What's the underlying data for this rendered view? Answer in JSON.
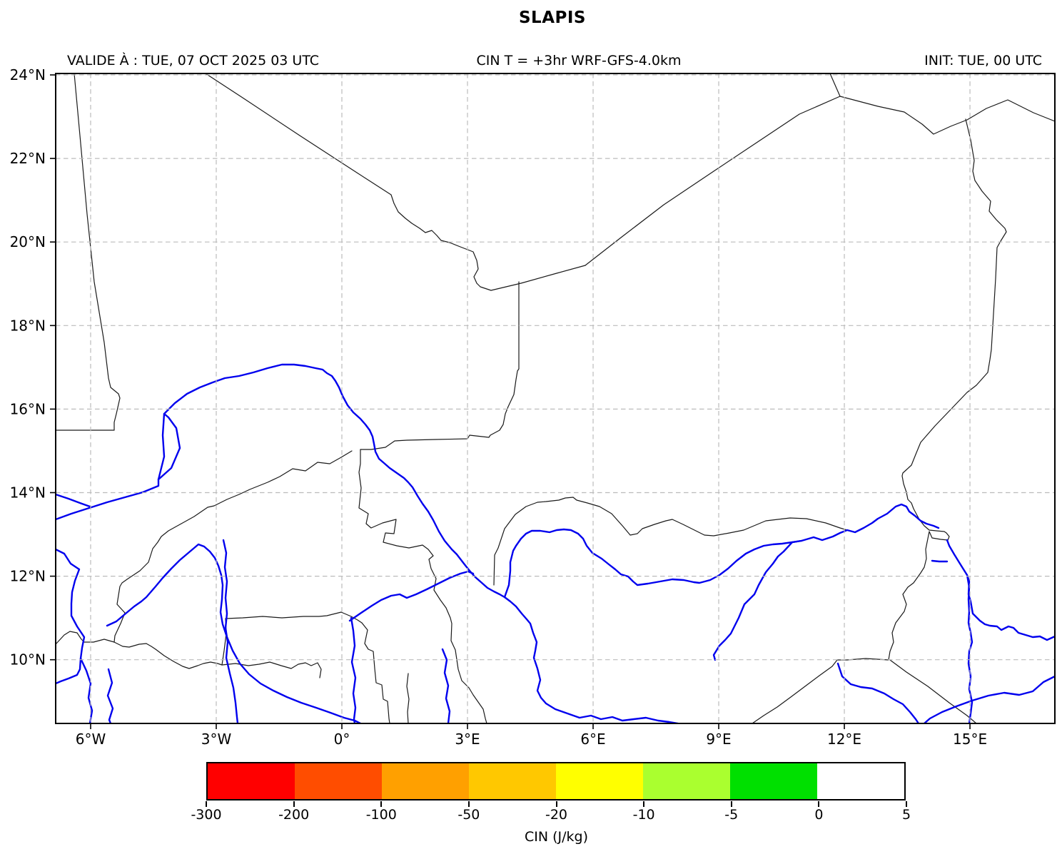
{
  "title": "SLAPIS",
  "header": {
    "left": "VALIDE À : TUE, 07 OCT 2025 03 UTC",
    "center": "CIN T = +3hr WRF-GFS-4.0km",
    "right": "INIT: TUE, 00 UTC"
  },
  "chart_data": {
    "type": "map",
    "title": "SLAPIS",
    "subtitle_left": "VALIDE À : TUE, 07 OCT 2025 03 UTC",
    "subtitle_center": "CIN T = +3hr WRF-GFS-4.0km",
    "subtitle_right": "INIT: TUE, 00 UTC",
    "projection": "equirectangular lon/lat",
    "x_axis": {
      "range_deg": [
        -6.84,
        17.03
      ],
      "ticks": [
        {
          "label": "6°W",
          "lon": -6
        },
        {
          "label": "3°W",
          "lon": -3
        },
        {
          "label": "0°",
          "lon": 0
        },
        {
          "label": "3°E",
          "lon": 3
        },
        {
          "label": "6°E",
          "lon": 6
        },
        {
          "label": "9°E",
          "lon": 9
        },
        {
          "label": "12°E",
          "lon": 12
        },
        {
          "label": "15°E",
          "lon": 15
        }
      ]
    },
    "y_axis": {
      "range_deg": [
        8.47,
        24.03
      ],
      "ticks": [
        {
          "label": "24°N",
          "lat": 24
        },
        {
          "label": "22°N",
          "lat": 22
        },
        {
          "label": "20°N",
          "lat": 20
        },
        {
          "label": "18°N",
          "lat": 18
        },
        {
          "label": "16°N",
          "lat": 16
        },
        {
          "label": "14°N",
          "lat": 14
        },
        {
          "label": "12°N",
          "lat": 12
        },
        {
          "label": "10°N",
          "lat": 10
        }
      ]
    },
    "grid": "dashed",
    "legend_position": "bottom colorbar",
    "colorbar": {
      "label": "CIN (J/kg)",
      "tick_labels": [
        "-300",
        "-200",
        "-100",
        "-50",
        "-20",
        "-10",
        "-5",
        "0",
        "5"
      ],
      "segment_colors": [
        "#ff0000",
        "#ff4d00",
        "#ffa000",
        "#ffc800",
        "#ffff00",
        "#aaff2f",
        "#00e000",
        "#ffffff"
      ]
    },
    "colors": {
      "border": "#1a1a1a",
      "river": "#0000ee",
      "grid": "#bbbbbb",
      "frame": "#000000"
    },
    "layers": {
      "borders": [
        "104,103 112,190 122,300 132,395 146,480 152,530 155,543 166,552 168,558 163,580 160,592 160,603 130,603 78,603",
        "288,103 340,137 420,190 500,242 548,273 552,285 558,297 568,306 577,313 588,320 596,326 605,323 612,330 618,337 630,340 645,346 658,351 663,353 668,365 670,377 664,388 668,397 673,402 688,407 730,397 780,383 820,372",
        "820,372 870,333 930,287 1000,240 1060,200 1120,160 1177,135",
        "1163,103 1177,135",
        "1177,135 1230,149 1267,157 1292,174 1308,188 1332,177 1355,168 1382,152 1412,140 1448,158 1478,170",
        "1353,167 1360,196 1365,225 1363,240 1366,253 1376,268 1388,282 1386,296 1396,308 1408,320 1410,325 1402,338 1397,347 1395,390 1392,440 1389,490 1387,504 1384,522 1368,540 1355,550 1333,573 1310,597 1290,620 1283,637 1277,652 1265,663 1264,667 1266,678 1270,690 1272,700 1277,705 1280,713 1288,728 1295,737 1302,743 1312,744 1323,745 1326,747 1330,752 1328,757 1318,756 1306,754 1302,745 1297,770 1298,783 1295,795 1290,803 1280,817 1272,823 1265,833 1270,847 1267,857 1255,873 1250,887 1252,900 1247,913 1245,925 1213,923 1187,925 1173,925 1166,934 1148,947 1128,962 1108,977 1089,991 1070,1003 1054,1014",
        "1247,925 1270,942 1300,962 1330,985 1355,1003 1368,1014",
        "727,395 727,450 727,517 725,520 723,532 720,553 712,570 708,580 705,595 700,603 687,610 685,613 658,610 655,615 610,616 570,617 553,618 540,627 520,630 505,630",
        "505,630 505,650 503,662 506,684 503,712 516,720 513,734 520,740 536,733 551,729 555,728 552,748 540,747 537,760 556,765 573,768 592,764 600,770 607,779 601,784 604,797 611,811 608,827 617,841 625,852 631,866 633,874 632,898 638,911 642,938 647,954 657,964 663,974 670,984 677,994 680,1007 682,1014",
        "493,632 478,641 462,650 445,648 428,660 410,657 392,668 375,676 365,680 350,686 335,693 318,700 300,709 291,711 272,724 254,734 236,744 226,752 221,760 214,769 208,788 196,800 178,812 171,817 168,822 164,847 175,859 169,874 161,891 160,900",
        "78,903 90,890 98,885 108,887 114,896 118,900 131,900 146,896 160,900",
        "160,900 172,906 181,907 195,903 205,902 212,906 218,910 230,919 243,927 256,934 265,937 277,933 285,930 295,928 305,930 311,932 314,912 317,888 316,867",
        "316,867 340,866 368,864 395,866 425,864 447,864 458,863 470,860 478,858 492,864 501,869 507,873",
        "507,873 515,883 511,902 516,910 523,913 525,937 527,957 535,960 537,980 543,983 545,1007 546,1014",
        "572,944 570,962 573,980 571,998 572,1014",
        "311,932 330,930 348,933 363,931 378,928 394,933 408,937 418,931 428,929 436,933 445,929 450,938 448,950",
        "692,820 693,778 698,768 707,741 722,721 737,710 753,704 765,703 783,701 792,698 803,697 808,701 823,705 840,710 857,720 873,738 883,750 893,748 900,741 917,735 933,730 942,728 957,735 967,740 977,745 987,750 1000,751 1022,747 1042,743 1073,730 1107,726 1130,727 1157,733 1177,740 1187,743"
      ],
      "rivers": [
        "78,728 100,720 125,712 150,704 175,697 200,690 222,681 222,672 230,640 228,610 230,580 245,565 262,552 280,543 298,536 315,530 335,527 355,522 375,516 395,511 412,511 428,513 442,516 452,518 458,523 465,527 470,534 475,543 480,555 487,568 495,578 505,587 512,595 518,603 522,612 524,622 526,633 531,643 538,649 546,656 556,663 566,670 572,676 578,683 585,695 592,706 600,717 607,729 615,745 623,758 633,770 640,777 650,790 658,800 666,809 674,816 683,824 692,829 700,833 707,837 715,843 723,850 731,860 738,868 743,874 747,887 752,900 750,912 748,922 753,937 757,953 753,968 758,978 765,986 778,994 795,1000 812,1006 828,1003 842,1008 858,1005 872,1010 888,1008 905,1006 922,1010 938,1012 950,1014",
        "78,693 96,699 112,705 126,710",
        "222,672 240,656 252,628 247,600 236,585 230,580",
        "78,770 90,776 99,790 111,798 105,814 101,830 100,846 100,863 108,878 118,893 115,908 113,923 112,938 108,946 96,951 85,955 78,958",
        "113,923 121,940 127,958 124,978 129,996 126,1014",
        "152,938 157,957 151,975 158,993 153,1009 155,1014",
        "150,877 163,871 176,860 188,850 198,843 205,837 218,822 228,810 240,797 252,785 265,774 278,763 286,766 294,773 301,782 306,793 310,806 312,820 311,840 309,858 312,875 318,893 326,912 336,930 349,945 365,958 383,968 402,977 422,985 443,992 463,999 482,1006 497,1010 505,1014",
        "313,757 317,775 315,795 318,815 316,838 318,860 316,880 319,900 317,922 322,944 327,964 330,985 332,1005 333,1014",
        "492,866 495,884 497,905 493,928 498,950 495,972 498,992 496,1008 497,1014",
        "620,910 626,925 623,943 628,961 625,979 630,997 628,1014",
        "490,870 506,859 521,849 534,841 548,835 560,833 570,838 583,833 598,826 614,818 630,810 645,804 656,801 663,804",
        "707,837 713,820 715,800 715,788 719,772 723,765 730,755 737,748 745,744 757,744 770,746 780,743 790,742 800,743 810,748 817,755 822,765 830,775 843,783 853,791 862,798 870,805 880,808 887,815 893,820 908,818 925,815 942,812 958,813 972,816 980,817 995,813 1008,806 1020,797 1032,786 1045,776 1057,770 1070,765 1083,763 1096,762 1110,760 1123,758",
        "1002,925 1000,918 1008,905 1016,897 1024,888 1035,866 1043,847 1057,833 1063,820 1073,802 1083,790 1090,780 1098,773 1110,760 1123,758 1140,753 1152,757 1167,752 1177,747 1187,743 1198,746 1210,740 1222,733 1230,727 1243,720 1255,710 1263,707 1270,710 1274,717 1282,723 1290,730 1298,734 1308,737 1315,740",
        "1306,786 1316,787 1327,787",
        "1478,892 1467,897 1457,892 1447,893 1437,890 1427,887 1420,880 1413,878 1403,883 1397,878 1387,877 1380,875 1373,870 1363,860 1360,843 1357,833 1358,815 1355,806 1345,790 1337,777 1330,765 1327,757",
        "1355,806 1358,823 1357,840 1358,857 1357,873 1360,887 1362,900 1358,913 1357,930 1360,948 1358,966 1362,984 1360,1000 1358,1014",
        "1478,948 1462,956 1447,969 1428,974 1407,971 1385,975 1362,982 1340,990 1320,998 1303,1007 1295,1014",
        "1174,930 1180,948 1192,959 1206,963 1222,965 1239,972 1252,980 1265,987 1275,998 1283,1008 1287,1014"
      ]
    }
  }
}
